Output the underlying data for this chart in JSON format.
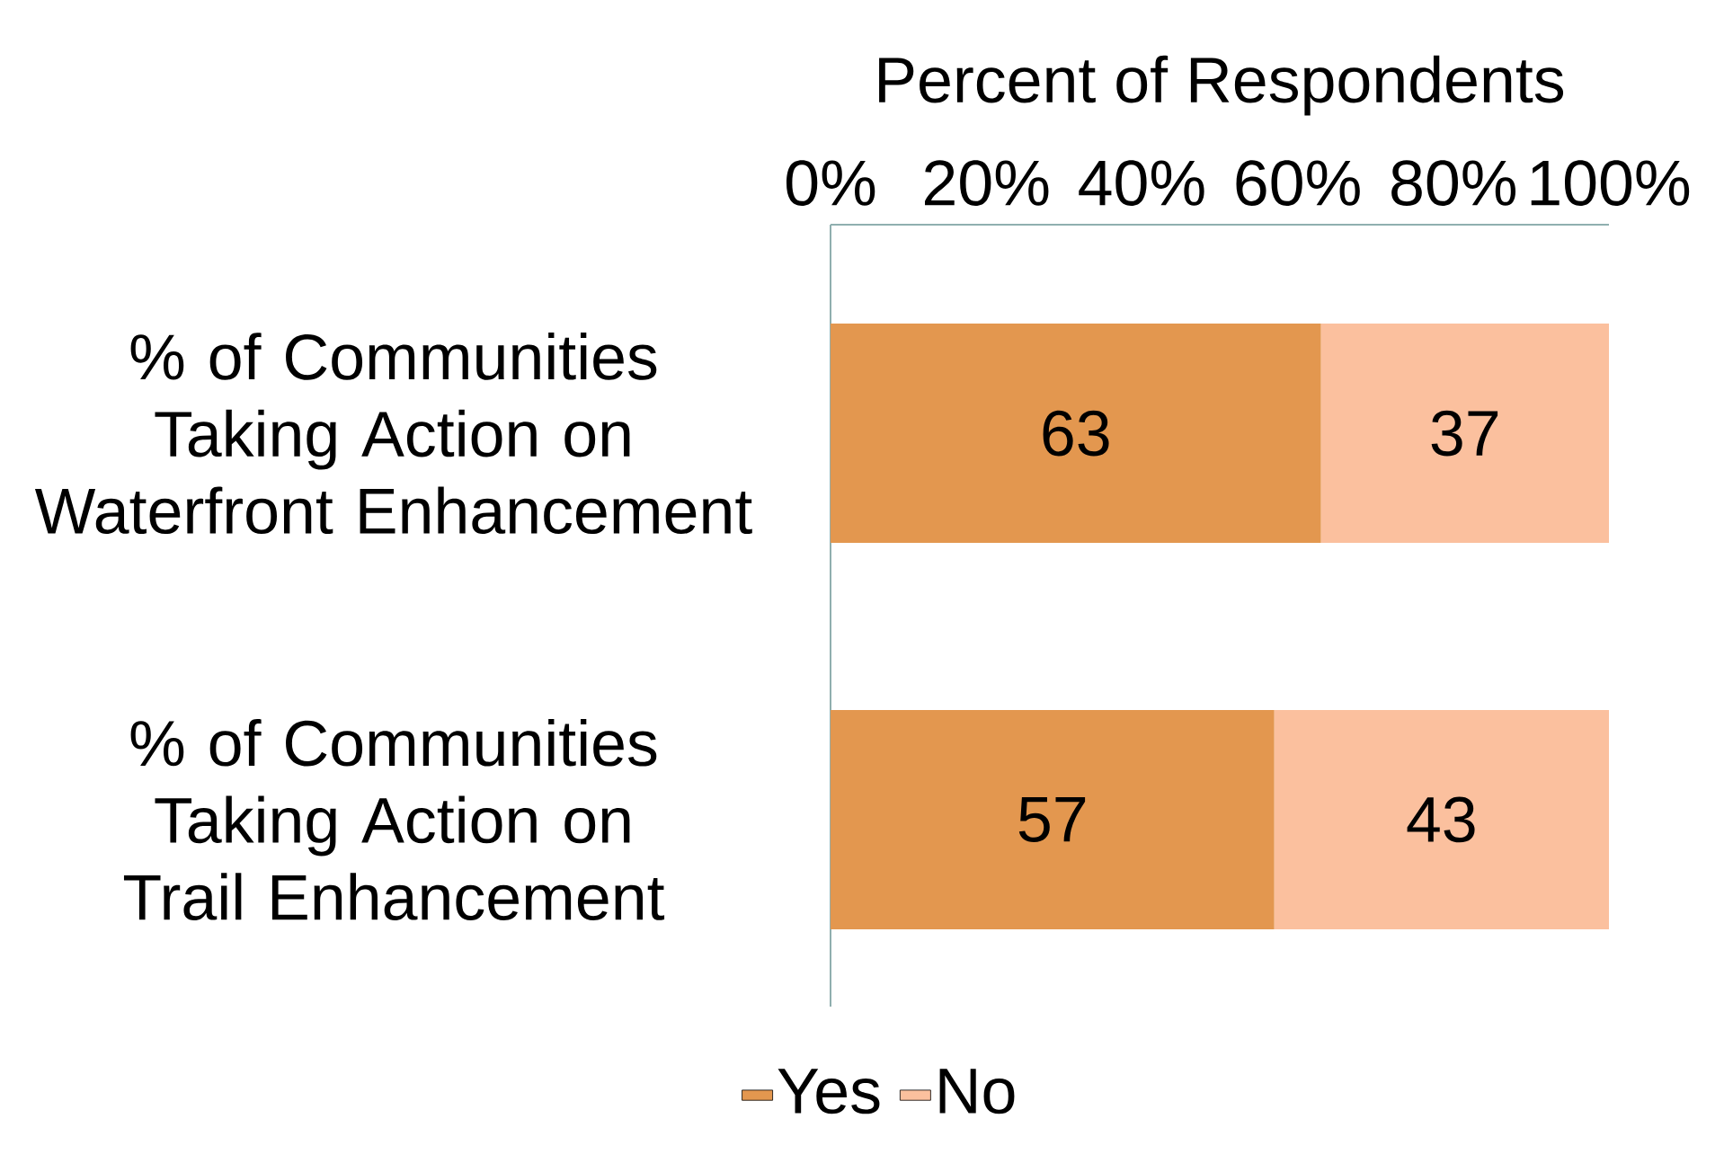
{
  "chart_data": {
    "type": "bar",
    "orientation": "horizontal",
    "stacked": true,
    "xlabel": "Percent of Respondents",
    "categories": [
      "% of Communities Taking Action on Waterfront Enhancement",
      "% of Communities Taking Action on Trail Enhancement"
    ],
    "series": [
      {
        "name": "Yes",
        "color": "#e3974f",
        "values": [
          63,
          57
        ]
      },
      {
        "name": "No",
        "color": "#fbc09e",
        "values": [
          37,
          43
        ]
      }
    ],
    "xlim": [
      0,
      100
    ],
    "xticks": [
      {
        "value": 0,
        "label": "0%"
      },
      {
        "value": 20,
        "label": "20%"
      },
      {
        "value": 40,
        "label": "40%"
      },
      {
        "value": 60,
        "label": "60%"
      },
      {
        "value": 80,
        "label": "80%"
      },
      {
        "value": 100,
        "label": "100%"
      }
    ],
    "data_labels": true,
    "grid": false,
    "legend": "bottom"
  }
}
